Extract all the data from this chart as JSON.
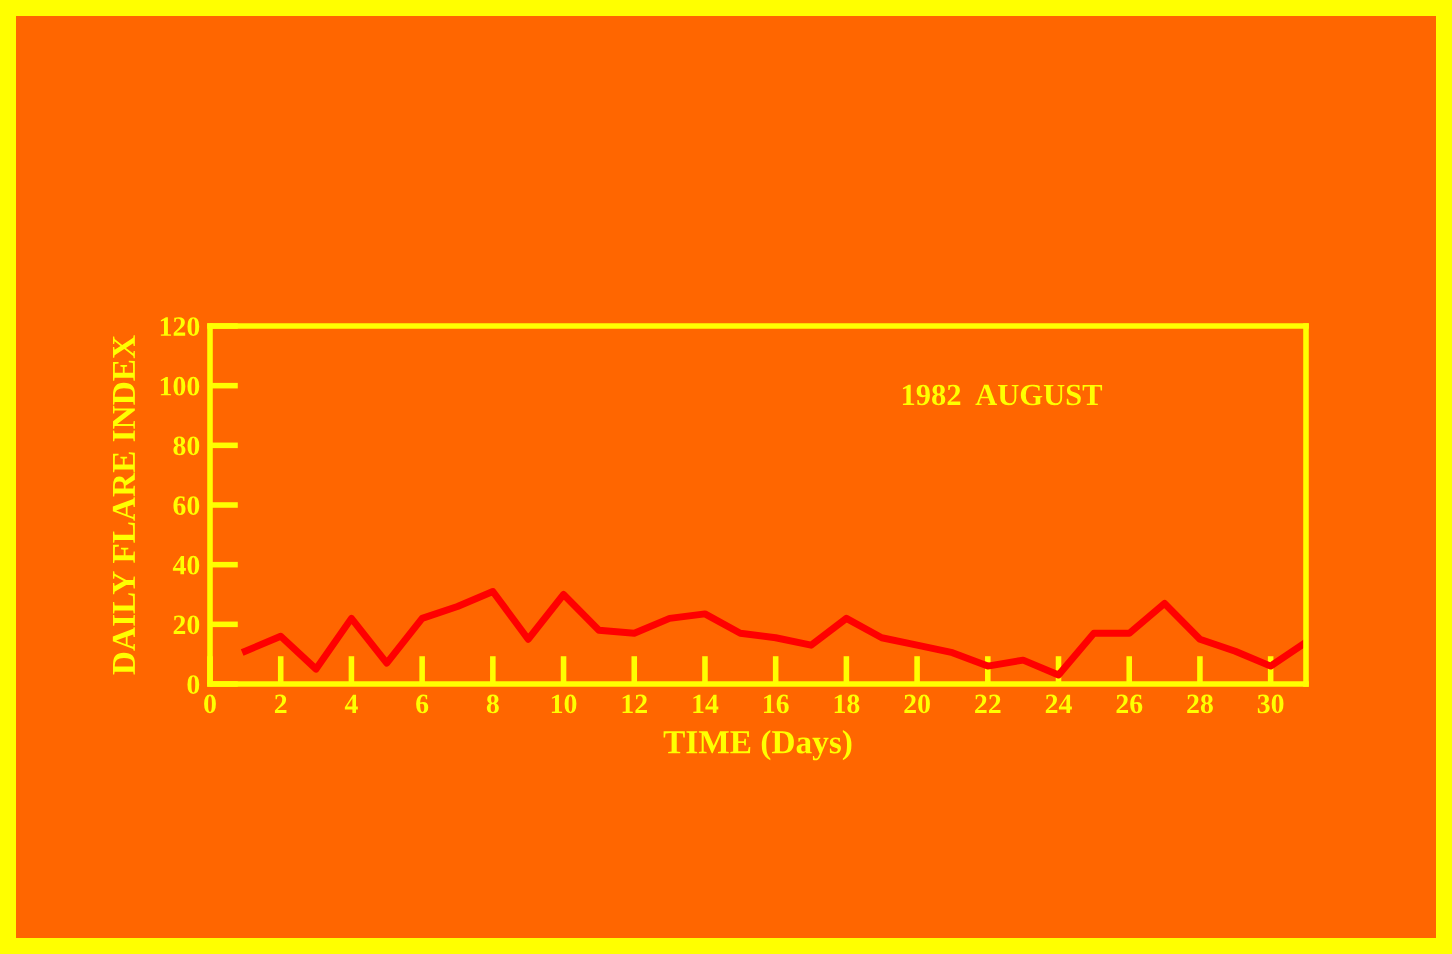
{
  "chart_data": {
    "type": "line",
    "xlabel": "TIME (Days)",
    "ylabel": "DAILY FLARE INDEX",
    "annotations": [
      "1982  AUGUST"
    ],
    "x": [
      1,
      2,
      3,
      4,
      5,
      6,
      7,
      8,
      9,
      10,
      11,
      12,
      13,
      14,
      15,
      16,
      17,
      18,
      19,
      20,
      21,
      22,
      23,
      24,
      25,
      26,
      27,
      28,
      29,
      30,
      31
    ],
    "series": [
      {
        "color": "#ff0000",
        "values": [
          11,
          16,
          5,
          22,
          7,
          22,
          26,
          31,
          15,
          30,
          18,
          17,
          22,
          23.5,
          17,
          15.5,
          13,
          22,
          15.5,
          13,
          10.5,
          6,
          8,
          3,
          17,
          17,
          27,
          15,
          11,
          6,
          14
        ]
      }
    ],
    "xlim": [
      0,
      31
    ],
    "ylim": [
      0,
      120
    ],
    "xticks": [
      0,
      2,
      4,
      6,
      8,
      10,
      12,
      14,
      16,
      18,
      20,
      22,
      24,
      26,
      28,
      30
    ],
    "yticks": [
      0,
      20,
      40,
      60,
      80,
      100,
      120
    ],
    "grid": false,
    "legend": false,
    "marker": "none",
    "line_style": "solid"
  }
}
